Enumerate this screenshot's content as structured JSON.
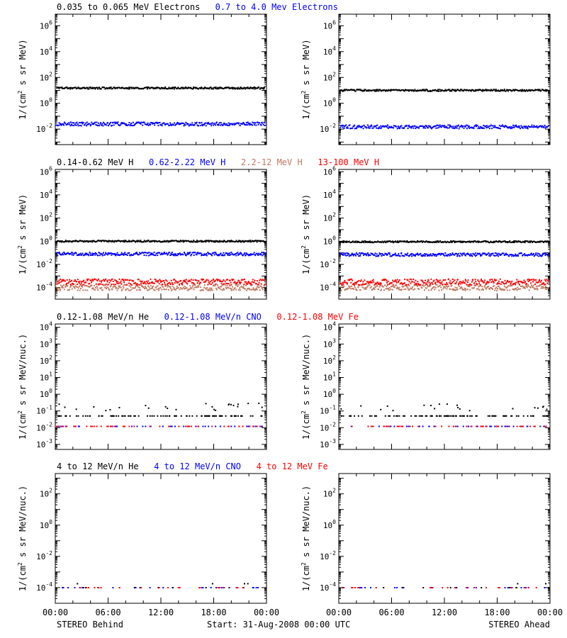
{
  "colors": {
    "black": "#000000",
    "blue": "#0000ff",
    "tan": "#c07860",
    "red": "#ff0000"
  },
  "footer": {
    "left": "STEREO Behind",
    "center": "Start: 31-Aug-2008 00:00 UTC",
    "right": "STEREO Ahead"
  },
  "x_ticks": [
    "00:00",
    "06:00",
    "12:00",
    "18:00",
    "00:00"
  ],
  "rows": [
    {
      "labels": [
        {
          "text": "0.035 to 0.065 MeV Electrons",
          "color": "#000000"
        },
        {
          "text": "0.7 to 4.0 Mev Electrons",
          "color": "#0000ff"
        }
      ],
      "ylabel_pre": "1/(cm",
      "ylabel_post": " s sr MeV)",
      "ylim_exp": [
        -3.2,
        6.9
      ],
      "ytick_exps": [
        -2,
        0,
        2,
        4,
        6
      ]
    },
    {
      "labels": [
        {
          "text": "0.14-0.62 MeV H",
          "color": "#000000"
        },
        {
          "text": "0.62-2.22 MeV H",
          "color": "#0000ff"
        },
        {
          "text": "2.2-12 MeV H",
          "color": "#c07860"
        },
        {
          "text": "13-100 MeV H",
          "color": "#ff0000"
        }
      ],
      "ylabel_pre": "1/(cm",
      "ylabel_post": " s sr MeV)",
      "ylim_exp": [
        -5,
        6.2
      ],
      "ytick_exps": [
        -4,
        -2,
        0,
        2,
        4,
        6
      ]
    },
    {
      "labels": [
        {
          "text": "0.12-1.08 MeV/n He",
          "color": "#000000"
        },
        {
          "text": "0.12-1.08 MeV/n CNO",
          "color": "#0000ff"
        },
        {
          "text": "0.12-1.08 MeV Fe",
          "color": "#ff0000"
        }
      ],
      "ylabel_pre": "1/(cm",
      "ylabel_post": " s sr MeV/nuc.)",
      "ylim_exp": [
        -3.3,
        4.2
      ],
      "ytick_exps": [
        -3,
        -2,
        -1,
        0,
        1,
        2,
        3,
        4
      ]
    },
    {
      "labels": [
        {
          "text": "4 to 12 MeV/n He",
          "color": "#000000"
        },
        {
          "text": "4 to 12 MeV/n CNO",
          "color": "#0000ff"
        },
        {
          "text": "4 to 12 MeV Fe",
          "color": "#ff0000"
        }
      ],
      "ylabel_pre": "1/(cm",
      "ylabel_post": " s sr MeV/nuc.)",
      "ylim_exp": [
        -5,
        3.3
      ],
      "ytick_exps": [
        -4,
        -2,
        0,
        2
      ]
    }
  ],
  "chart_data": [
    {
      "type": "scatter",
      "panel": "STEREO Behind",
      "xlabel": "",
      "yscale": "log",
      "ylim": [
        0.0006,
        8000000.0
      ],
      "series": [
        {
          "name": "0.035 to 0.065 MeV Electrons",
          "color": "#000000",
          "y_typical": 15
        },
        {
          "name": "0.7 to 4.0 Mev Electrons",
          "color": "#0000ff",
          "y_typical": 0.025
        }
      ]
    },
    {
      "type": "scatter",
      "panel": "STEREO Ahead",
      "xlabel": "",
      "yscale": "log",
      "ylim": [
        0.0006,
        8000000.0
      ],
      "series": [
        {
          "name": "0.035 to 0.065 MeV Electrons",
          "color": "#000000",
          "y_typical": 10
        },
        {
          "name": "0.7 to 4.0 Mev Electrons",
          "color": "#0000ff",
          "y_typical": 0.015
        }
      ]
    },
    {
      "type": "scatter",
      "panel": "STEREO Behind",
      "yscale": "log",
      "ylim": [
        1e-05,
        1600000.0
      ],
      "series": [
        {
          "name": "0.14-0.62 MeV H",
          "color": "#000000",
          "y_typical": 1.0
        },
        {
          "name": "0.62-2.22 MeV H",
          "color": "#0000ff",
          "y_typical": 0.08
        },
        {
          "name": "2.2-12 MeV H",
          "color": "#c07860",
          "y_typical": 0.0001
        },
        {
          "name": "13-100 MeV H",
          "color": "#ff0000",
          "y_typical": 0.0003
        }
      ]
    },
    {
      "type": "scatter",
      "panel": "STEREO Ahead",
      "yscale": "log",
      "ylim": [
        1e-05,
        1600000.0
      ],
      "series": [
        {
          "name": "0.14-0.62 MeV H",
          "color": "#000000",
          "y_typical": 0.9
        },
        {
          "name": "0.62-2.22 MeV H",
          "color": "#0000ff",
          "y_typical": 0.07
        },
        {
          "name": "2.2-12 MeV H",
          "color": "#c07860",
          "y_typical": 0.0001
        },
        {
          "name": "13-100 MeV H",
          "color": "#ff0000",
          "y_typical": 0.0003
        }
      ]
    },
    {
      "type": "scatter",
      "panel": "STEREO Behind",
      "yscale": "log",
      "ylim": [
        0.0005,
        16000.0
      ],
      "series": [
        {
          "name": "0.12-1.08 MeV/n He",
          "color": "#000000",
          "y_typical": 0.05
        },
        {
          "name": "0.12-1.08 MeV/n CNO",
          "color": "#0000ff",
          "y_typical": 0.012
        },
        {
          "name": "0.12-1.08 MeV Fe",
          "color": "#ff0000",
          "y_typical": 0.012
        }
      ]
    },
    {
      "type": "scatter",
      "panel": "STEREO Ahead",
      "yscale": "log",
      "ylim": [
        0.0005,
        16000.0
      ],
      "series": [
        {
          "name": "0.12-1.08 MeV/n He",
          "color": "#000000",
          "y_typical": 0.05
        },
        {
          "name": "0.12-1.08 MeV/n CNO",
          "color": "#0000ff",
          "y_typical": 0.012
        },
        {
          "name": "0.12-1.08 MeV Fe",
          "color": "#ff0000",
          "y_typical": 0.012
        }
      ]
    },
    {
      "type": "scatter",
      "panel": "STEREO Behind",
      "yscale": "log",
      "ylim": [
        1e-05,
        2000.0
      ],
      "series": [
        {
          "name": "4 to 12 MeV/n He",
          "color": "#000000",
          "y_typical": 0.0001
        },
        {
          "name": "4 to 12 MeV/n CNO",
          "color": "#0000ff",
          "y_typical": 0.0001
        },
        {
          "name": "4 to 12 MeV Fe",
          "color": "#ff0000",
          "y_typical": 0.0001
        }
      ]
    },
    {
      "type": "scatter",
      "panel": "STEREO Ahead",
      "yscale": "log",
      "ylim": [
        1e-05,
        2000.0
      ],
      "series": [
        {
          "name": "4 to 12 MeV/n He",
          "color": "#000000",
          "y_typical": 0.0001
        },
        {
          "name": "4 to 12 MeV/n CNO",
          "color": "#0000ff",
          "y_typical": 0.0001
        },
        {
          "name": "4 to 12 MeV Fe",
          "color": "#ff0000",
          "y_typical": 0.0001
        }
      ]
    }
  ]
}
